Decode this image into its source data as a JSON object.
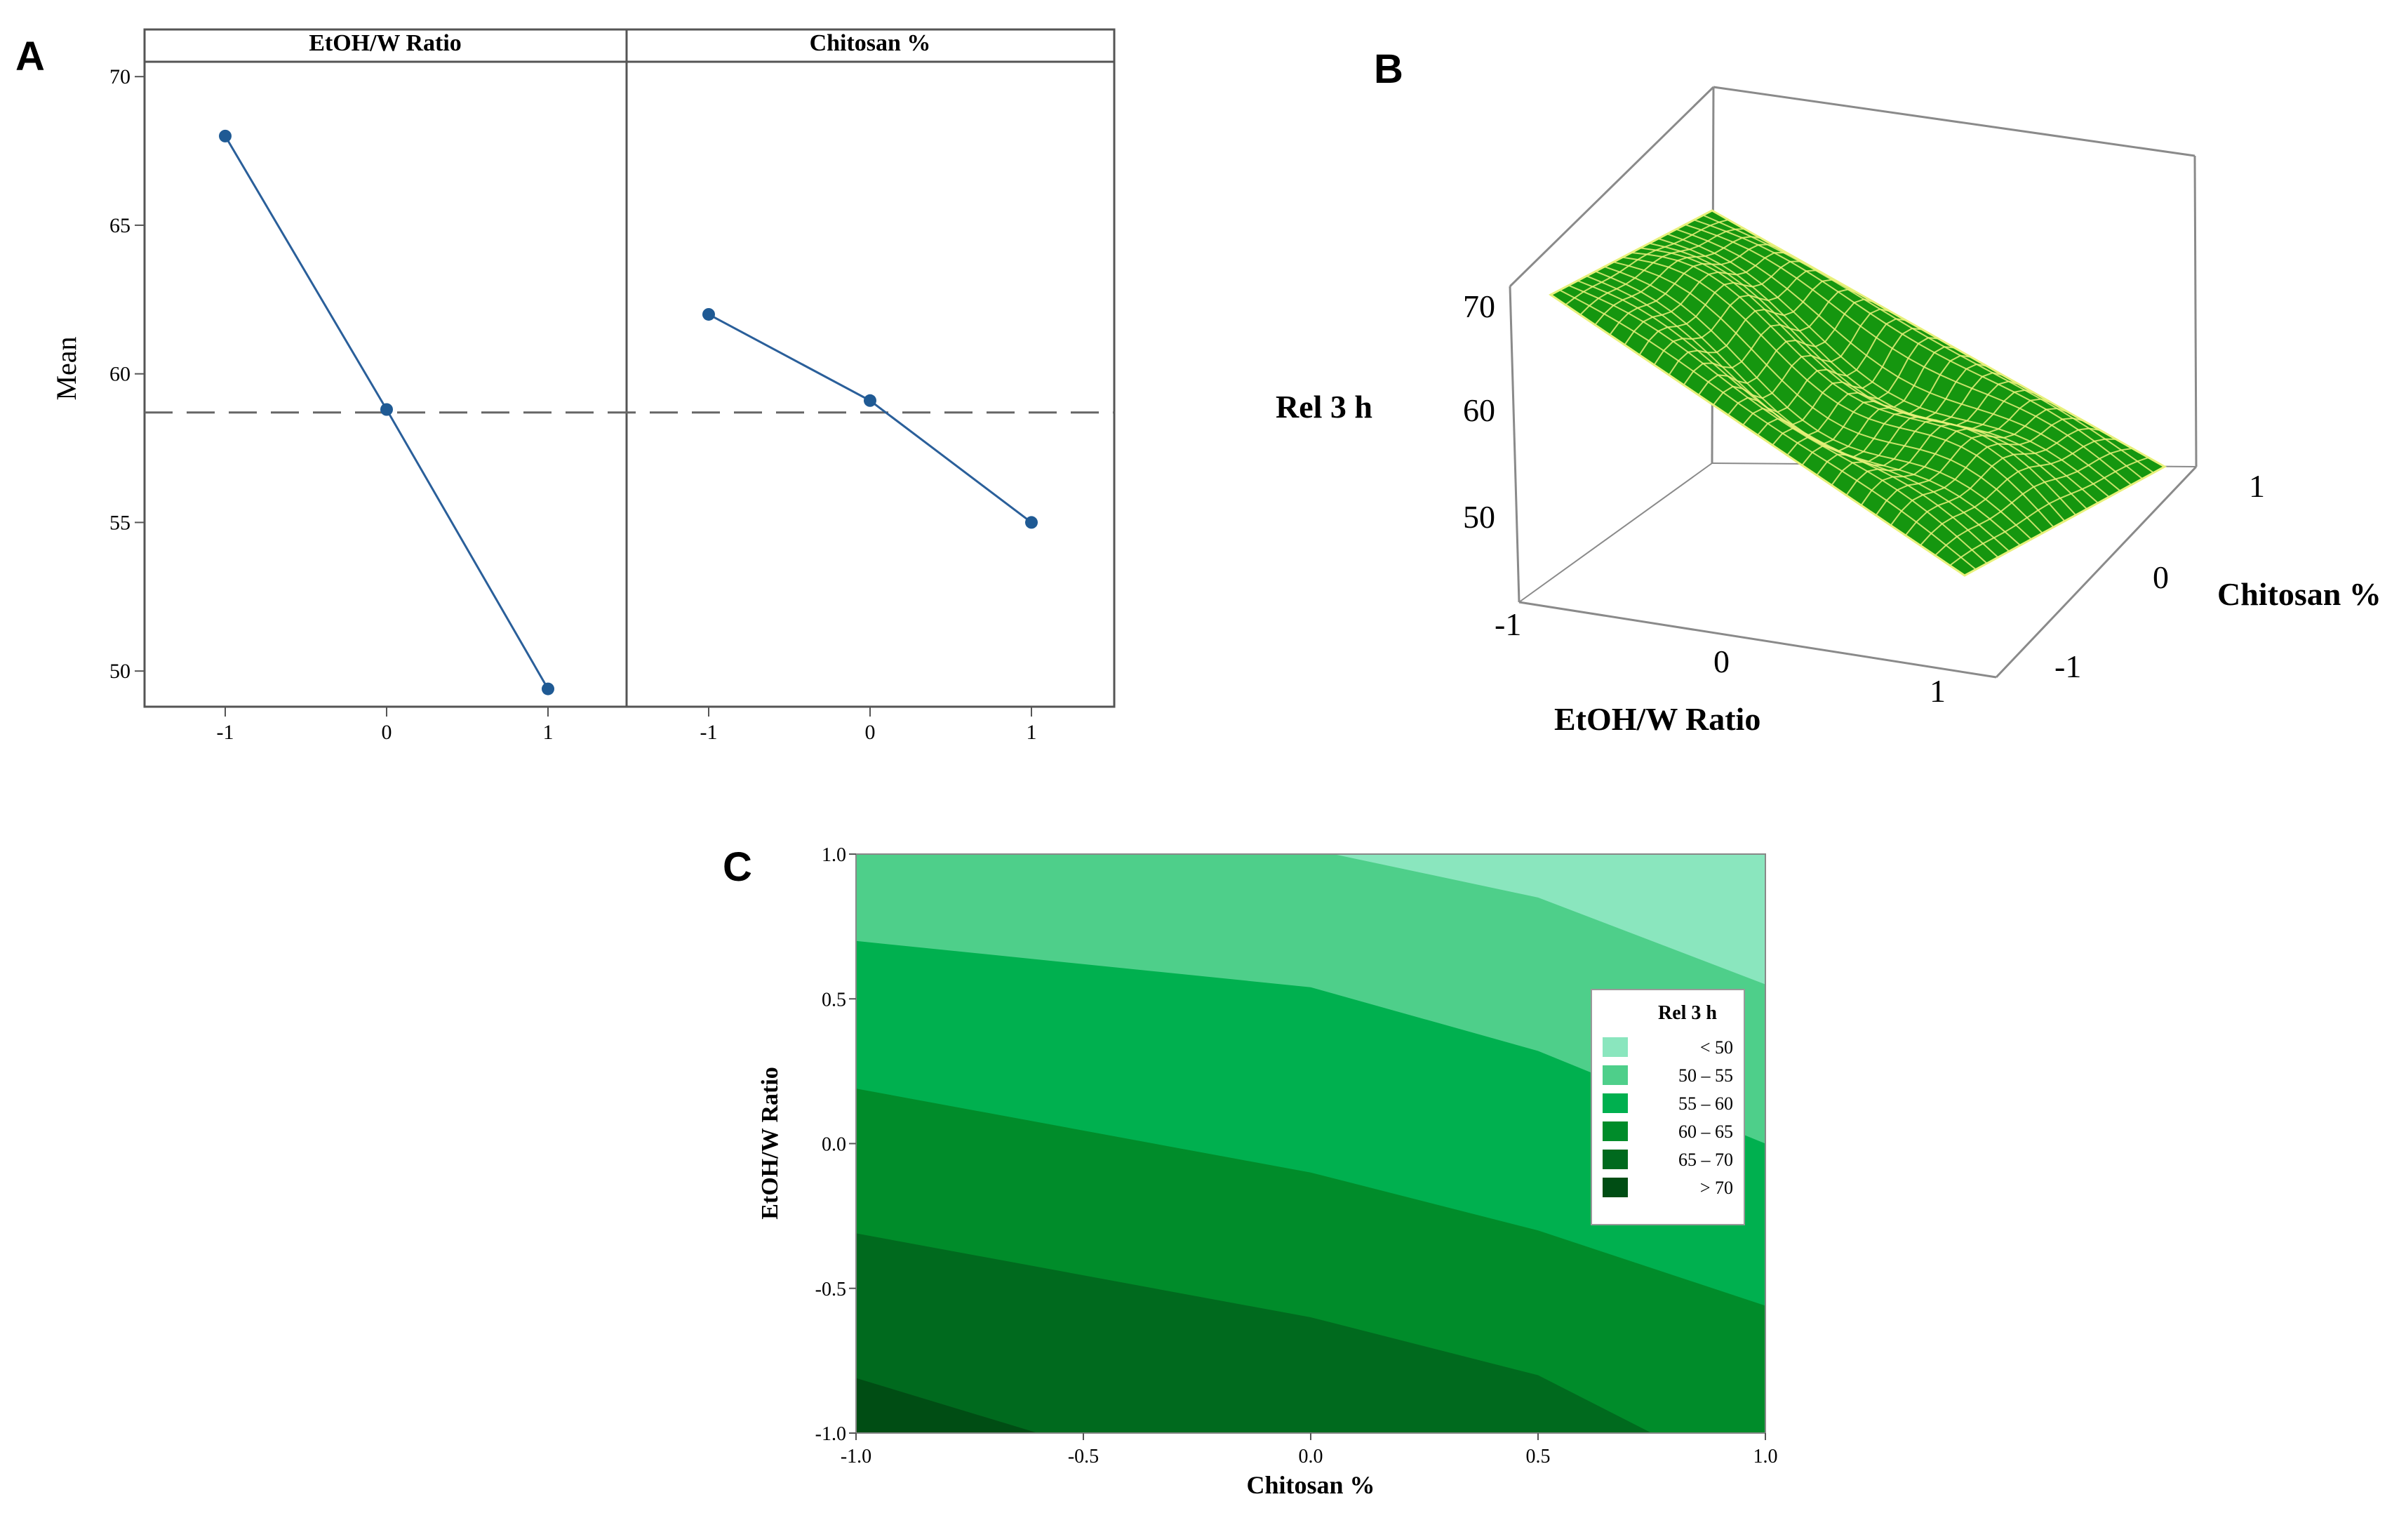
{
  "panel_labels": {
    "a": "A",
    "b": "B",
    "c": "C"
  },
  "colors": {
    "line": "#2a5f9a",
    "marker": "#1f5a94",
    "reference": "#666666",
    "frame": "#555555",
    "surface": "#15960f",
    "mesh": "#e8f17a"
  },
  "chart_data": [
    {
      "panel": "A",
      "type": "line",
      "title": "",
      "ylabel": "Mean",
      "ylim": [
        48.8,
        70.5
      ],
      "yticks": [
        50,
        55,
        60,
        65,
        70
      ],
      "ytick_labels": [
        "50",
        "55",
        "60",
        "65",
        "70"
      ],
      "reference_mean": 58.7,
      "facets": [
        {
          "name": "EtOH/W Ratio",
          "x": [
            "-1",
            "0",
            "1"
          ],
          "values": [
            68.0,
            58.8,
            49.4
          ]
        },
        {
          "name": "Chitosan %",
          "x": [
            "-1",
            "0",
            "1"
          ],
          "values": [
            62.0,
            59.1,
            55.0
          ]
        }
      ]
    },
    {
      "panel": "B",
      "type": "surface",
      "zlabel": "Rel 3 h",
      "xlabel": "EtOH/W Ratio",
      "ylabel": "Chitosan %",
      "zticks": [
        "50",
        "60",
        "70"
      ],
      "xticks": [
        "-1",
        "0",
        "1"
      ],
      "yticks": [
        "-1",
        "0",
        "1"
      ]
    },
    {
      "panel": "C",
      "type": "heatmap",
      "xlabel": "Chitosan %",
      "ylabel": "EtOH/W Ratio",
      "xlim": [
        -1.0,
        1.0
      ],
      "ylim": [
        -1.0,
        1.0
      ],
      "xticks": [
        "-1.0",
        "-0.5",
        "0.0",
        "0.5",
        "1.0"
      ],
      "yticks": [
        "-1.0",
        "-0.5",
        "0.0",
        "0.5",
        "1.0"
      ],
      "legend": {
        "title": "Rel 3 h",
        "placement": "right",
        "entries": [
          {
            "label": "< 50",
            "color": "#8ae6be"
          },
          {
            "label": "50 – 55",
            "color": "#4ecf8a"
          },
          {
            "label": "55 – 60",
            "color": "#00b04f"
          },
          {
            "label": "60 – 65",
            "color": "#008c2a"
          },
          {
            "label": "65 – 70",
            "color": "#006a1e"
          },
          {
            "label": "> 70",
            "color": "#004d14"
          }
        ]
      },
      "boundaries": [
        {
          "level": 50,
          "points": [
            [
              0.05,
              1.0
            ],
            [
              0.5,
              0.85
            ],
            [
              1.0,
              0.55
            ]
          ]
        },
        {
          "level": 55,
          "points": [
            [
              -1.0,
              0.7
            ],
            [
              0.0,
              0.54
            ],
            [
              0.5,
              0.32
            ],
            [
              1.0,
              0.0
            ]
          ]
        },
        {
          "level": 60,
          "points": [
            [
              -1.0,
              0.19
            ],
            [
              0.0,
              -0.1
            ],
            [
              0.5,
              -0.3
            ],
            [
              1.0,
              -0.56
            ]
          ]
        },
        {
          "level": 65,
          "points": [
            [
              -1.0,
              -0.31
            ],
            [
              0.0,
              -0.6
            ],
            [
              0.5,
              -0.8
            ],
            [
              0.75,
              -1.0
            ]
          ]
        },
        {
          "level": 70,
          "points": [
            [
              -1.0,
              -0.81
            ],
            [
              -0.6,
              -1.0
            ]
          ]
        }
      ]
    }
  ]
}
